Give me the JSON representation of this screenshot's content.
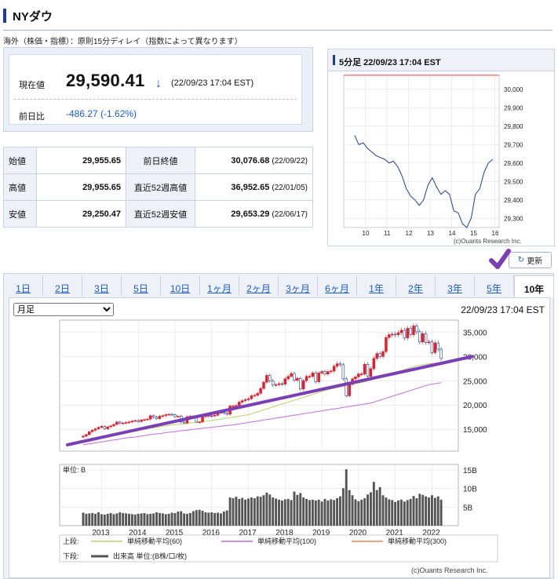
{
  "header": {
    "title": "NYダウ"
  },
  "note": "海外（株価・指標）：原則15分ディレイ（指数によって異なります）",
  "price": {
    "label": "現在値",
    "value": "29,590.41",
    "arrow": "↓",
    "time": "(22/09/23 17:04 EST)",
    "change_label": "前日比",
    "change": "-486.27 (-1.62%)"
  },
  "stats": [
    {
      "k1": "始値",
      "v1": "29,955.65",
      "k2": "前日終値",
      "v2": "30,076.68",
      "d2": "(22/09/22)"
    },
    {
      "k1": "高値",
      "v1": "29,955.65",
      "k2": "直近52週高値",
      "v2": "36,952.65",
      "d2": "(22/01/05)"
    },
    {
      "k1": "安値",
      "v1": "29,250.47",
      "k2": "直近52週安値",
      "v2": "29,653.29",
      "d2": "(22/06/17)"
    }
  ],
  "colors": {
    "accent": "#1c3f94",
    "down": "#1a5ad6",
    "up_candle": "#e0202c",
    "down_candle": "#1c3f94",
    "ma60": "#b8d46a",
    "ma100": "#c46ae0",
    "ma300": "#f08050",
    "annotation": "#7b3fb5"
  },
  "intraday": {
    "title": "5分足 22/09/23 17:04 EST",
    "credit": "(c)Ouants Research Inc.",
    "chart_data": {
      "type": "line",
      "x_ticks": [
        "10",
        "11",
        "12",
        "13",
        "14",
        "15",
        "16"
      ],
      "y_ticks": [
        "30,000",
        "29,900",
        "29,800",
        "29,700",
        "29,600",
        "29,500",
        "29,400",
        "29,300"
      ],
      "ylim": [
        29250,
        30076
      ],
      "reference_line": 30076.68,
      "x": [
        9.5,
        9.7,
        9.9,
        10.1,
        10.3,
        10.5,
        10.7,
        10.9,
        11.1,
        11.3,
        11.5,
        11.7,
        11.9,
        12.1,
        12.3,
        12.5,
        12.7,
        12.9,
        13.1,
        13.3,
        13.5,
        13.7,
        13.9,
        14.1,
        14.3,
        14.5,
        14.7,
        14.9,
        15.1,
        15.3,
        15.5,
        15.7,
        15.9
      ],
      "y": [
        29750,
        29700,
        29710,
        29680,
        29660,
        29640,
        29630,
        29620,
        29600,
        29610,
        29580,
        29530,
        29460,
        29420,
        29400,
        29370,
        29400,
        29480,
        29520,
        29470,
        29430,
        29450,
        29430,
        29340,
        29330,
        29270,
        29250,
        29300,
        29430,
        29460,
        29550,
        29600,
        29620
      ]
    }
  },
  "refresh_label": "更新",
  "tabs": [
    "1日",
    "2日",
    "3日",
    "5日",
    "10日",
    "1ヶ月",
    "2ヶ月",
    "3ヶ月",
    "6ヶ月",
    "1年",
    "2年",
    "3年",
    "5年",
    "10年"
  ],
  "active_tab": "10年",
  "main": {
    "period_select": "月足",
    "time": "22/09/23 17:04 EST",
    "unit_label": "単位: B",
    "credit": "(c)Ouants Research Inc.",
    "legend_upper_label": "上段:",
    "legend_lower_label": "下段:",
    "legend_upper": [
      "単純移動平均(60)",
      "単純移動平均(100)",
      "単純移動平均(300)"
    ],
    "legend_lower": "出来高 単位:(B株/口/枚)",
    "chart_data": {
      "type": "candlestick",
      "x_ticks": [
        "2013",
        "2014",
        "2015",
        "2016",
        "2017",
        "2018",
        "2019",
        "2020",
        "2021",
        "2022"
      ],
      "y_ticks": [
        "35,000",
        "30,000",
        "25,000",
        "20,000",
        "15,000"
      ],
      "ylim": [
        10500,
        37500
      ],
      "close": [
        13600,
        13900,
        14500,
        14800,
        15100,
        15400,
        15600,
        15100,
        15500,
        15700,
        16000,
        16500,
        16200,
        16300,
        16400,
        16500,
        16700,
        16800,
        16600,
        16900,
        17000,
        17100,
        17800,
        17500,
        17200,
        17700,
        17800,
        18000,
        18100,
        18000,
        17600,
        17700,
        16500,
        16300,
        17600,
        17700,
        17400,
        16500,
        16500,
        17600,
        17800,
        17700,
        17800,
        17900,
        18400,
        18500,
        18300,
        18100,
        19800,
        19800,
        19900,
        20600,
        20900,
        21100,
        21300,
        21900,
        22000,
        22400,
        23400,
        24700,
        26100,
        25000,
        24100,
        24200,
        24400,
        24300,
        25400,
        25900,
        26500,
        25100,
        25500,
        23300,
        25000,
        25900,
        25900,
        26600,
        24800,
        26600,
        26900,
        26400,
        26900,
        27000,
        28000,
        28500,
        28300,
        25400,
        21900,
        24300,
        25400,
        25800,
        26400,
        26400,
        28400,
        25900,
        27500,
        29600,
        30600,
        30000,
        31000,
        33900,
        34500,
        34600,
        34500,
        34900,
        35400,
        33800,
        35800,
        34500,
        36300,
        35100,
        33000,
        34700,
        32900,
        33000,
        30800,
        32800,
        31500,
        29590
      ],
      "ma_lower": [
        11800,
        11900,
        12000,
        12100,
        12200,
        12300,
        12400,
        12500,
        12600,
        12700,
        12800,
        12900,
        13000,
        13100,
        13200,
        13300,
        13350,
        13400,
        13500,
        13600,
        13700,
        13800,
        13900,
        14000,
        14050,
        14100,
        14200,
        14300,
        14400,
        14450,
        14500,
        14600,
        14700,
        14750,
        14800,
        14900,
        15000,
        15050,
        15100,
        15200,
        15300,
        15350,
        15400,
        15500,
        15550,
        15600,
        15700,
        15800,
        15850,
        15900,
        16000,
        16100,
        16200,
        16300,
        16400,
        16500,
        16600,
        16700,
        16800,
        16900,
        17000,
        17100,
        17200,
        17300,
        17400,
        17500,
        17600,
        17700,
        17800,
        17900,
        18000,
        18100,
        18200,
        18300,
        18400,
        18500,
        18600,
        18700,
        18800,
        18900,
        19000,
        19100,
        19200,
        19300,
        19400,
        19500,
        19600,
        19700,
        19800,
        19900,
        20000,
        20100,
        20200,
        20300,
        20400,
        20600,
        20800,
        21000,
        21200,
        21400,
        21600,
        21800,
        22000,
        22200,
        22400,
        22600,
        22800,
        23000,
        23200,
        23400,
        23600,
        23800,
        24000,
        24200,
        24300,
        24400,
        24500,
        24600
      ],
      "ma_upper": [
        12300,
        12450,
        12600,
        12750,
        12900,
        13050,
        13200,
        13350,
        13500,
        13650,
        13800,
        13950,
        14100,
        14250,
        14400,
        14500,
        14600,
        14700,
        14800,
        14900,
        15000,
        15100,
        15200,
        15300,
        15400,
        15500,
        15600,
        15700,
        15800,
        15900,
        16000,
        16050,
        16100,
        16150,
        16200,
        16300,
        16400,
        16450,
        16500,
        16600,
        16700,
        16750,
        16800,
        16900,
        17000,
        17100,
        17200,
        17300,
        17400,
        17500,
        17600,
        17700,
        17800,
        17900,
        18000,
        18200,
        18400,
        18600,
        18800,
        19000,
        19200,
        19400,
        19600,
        19800,
        20000,
        20200,
        20400,
        20600,
        20800,
        21000,
        21200,
        21400,
        21600,
        21800,
        22000,
        22200,
        22400,
        22600,
        22800,
        23000,
        23150,
        23300,
        23450,
        23600,
        23750,
        23900,
        24000,
        24100,
        24200,
        24350,
        24500,
        24650,
        24800,
        24950,
        25100,
        25300,
        25500,
        25700,
        25900,
        26100,
        26300,
        26500,
        26700,
        26900,
        27100,
        27300,
        27500,
        27700,
        27900,
        28100,
        28200,
        28300,
        28400,
        28500,
        28550,
        28600,
        28650,
        28700
      ],
      "volume": [
        3.5,
        3.2,
        3.3,
        3.4,
        3.2,
        3.6,
        3.1,
        3.0,
        3.2,
        3.4,
        3.1,
        3.3,
        3.6,
        3.4,
        3.3,
        3.2,
        3.1,
        3.0,
        3.2,
        3.3,
        3.4,
        3.1,
        3.2,
        3.3,
        3.6,
        3.4,
        3.3,
        3.1,
        3.2,
        3.5,
        3.4,
        3.8,
        3.9,
        3.3,
        3.2,
        3.4,
        3.9,
        4.2,
        4.3,
        4.0,
        3.6,
        3.5,
        3.6,
        3.4,
        3.5,
        3.3,
        3.8,
        4.1,
        7.6,
        7.4,
        7.8,
        7.2,
        7.5,
        7.0,
        7.3,
        7.6,
        7.4,
        7.9,
        7.8,
        8.2,
        8.9,
        8.4,
        7.6,
        7.3,
        7.0,
        6.8,
        7.1,
        7.2,
        6.9,
        9.2,
        8.3,
        8.8,
        7.6,
        7.2,
        6.9,
        7.0,
        6.8,
        7.0,
        6.5,
        7.2,
        6.8,
        7.1,
        6.9,
        7.4,
        7.9,
        10.1,
        15.2,
        9.6,
        8.2,
        7.1,
        6.6,
        7.0,
        7.4,
        8.4,
        9.0,
        11.8,
        9.6,
        10.4,
        8.2,
        7.6,
        7.1,
        6.9,
        6.4,
        6.8,
        7.0,
        6.5,
        6.9,
        7.2,
        8.0,
        7.4,
        8.6,
        8.3,
        7.9,
        7.6,
        8.2,
        7.5,
        7.9,
        7.0
      ],
      "volume_ticks": [
        "15B",
        "10B",
        "5B"
      ]
    }
  }
}
